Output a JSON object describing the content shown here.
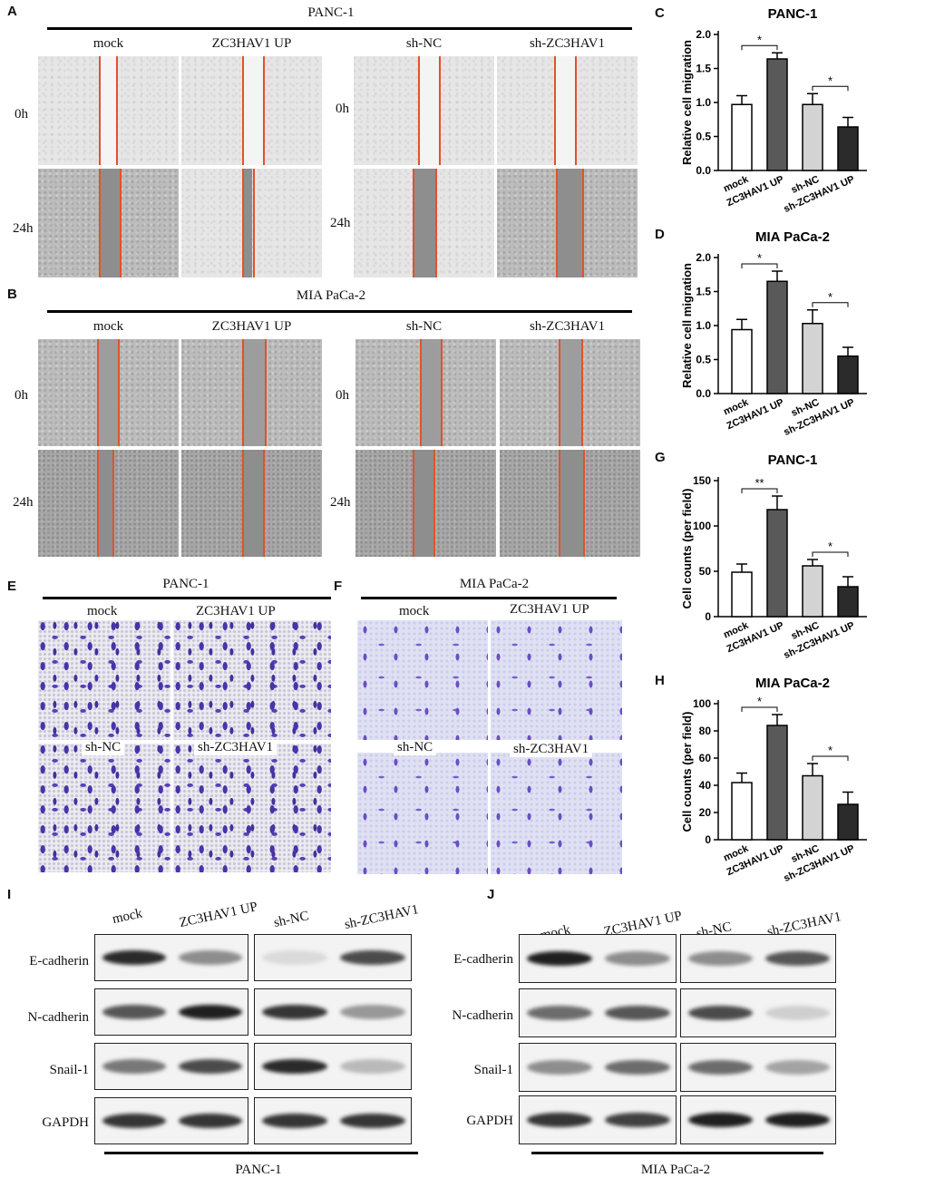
{
  "panel_labels": {
    "A": "A",
    "B": "B",
    "C": "C",
    "D": "D",
    "E": "E",
    "F": "F",
    "G": "G",
    "H": "H",
    "I": "I",
    "J": "J"
  },
  "panelA": {
    "title": "PANC-1",
    "groups": [
      "mock",
      "ZC3HAV1 UP",
      "sh-NC",
      "sh-ZC3HAV1"
    ],
    "times": [
      "0h",
      "24h"
    ]
  },
  "panelB": {
    "title": "MIA PaCa-2",
    "groups": [
      "mock",
      "ZC3HAV1 UP",
      "sh-NC",
      "sh-ZC3HAV1"
    ],
    "times": [
      "0h",
      "24h"
    ]
  },
  "panelE": {
    "title": "PANC-1",
    "labels": [
      "mock",
      "ZC3HAV1 UP",
      "sh-NC",
      "sh-ZC3HAV1"
    ]
  },
  "panelF": {
    "title": "MIA PaCa-2",
    "labels": [
      "mock",
      "ZC3HAV1 UP",
      "sh-NC",
      "sh-ZC3HAV1"
    ]
  },
  "panelI": {
    "groups": [
      "mock",
      "ZC3HAV1 UP",
      "sh-NC",
      "sh-ZC3HAV1"
    ],
    "rows": [
      "E-cadherin",
      "N-cadherin",
      "Snail-1",
      "GAPDH"
    ],
    "footer": "PANC-1"
  },
  "panelJ": {
    "groups": [
      "mock",
      "ZC3HAV1 UP",
      "sh-NC",
      "sh-ZC3HAV1"
    ],
    "rows": [
      "E-cadherin",
      "N-cadherin",
      "Snail-1",
      "GAPDH"
    ],
    "footer": "MIA PaCa-2"
  },
  "colors": {
    "bar_fills": [
      "#ffffff",
      "#595959",
      "#d3d3d3",
      "#2b2b2b"
    ],
    "scratch_line": "#e0532a",
    "crystal_violet": "#4a33a8"
  },
  "chart_data": [
    {
      "id": "C",
      "type": "bar",
      "title": "PANC-1",
      "ylabel": "Relative cell migration",
      "categories": [
        "mock",
        "ZC3HAV1 UP",
        "sh-NC",
        "sh-ZC3HAV1 UP"
      ],
      "values": [
        0.97,
        1.64,
        0.97,
        0.64
      ],
      "errors": [
        0.13,
        0.09,
        0.16,
        0.14
      ],
      "ylim": [
        0,
        2.0
      ],
      "yticks": [
        "0.0",
        "0.5",
        "1.0",
        "1.5",
        "2.0"
      ],
      "significance": [
        {
          "pair": [
            0,
            1
          ],
          "label": "*"
        },
        {
          "pair": [
            2,
            3
          ],
          "label": "*"
        }
      ]
    },
    {
      "id": "D",
      "type": "bar",
      "title": "MIA PaCa-2",
      "ylabel": "Relative cell migration",
      "categories": [
        "mock",
        "ZC3HAV1 UP",
        "sh-NC",
        "sh-ZC3HAV1 UP"
      ],
      "values": [
        0.94,
        1.65,
        1.03,
        0.55
      ],
      "errors": [
        0.15,
        0.15,
        0.2,
        0.13
      ],
      "ylim": [
        0,
        2.0
      ],
      "yticks": [
        "0.0",
        "0.5",
        "1.0",
        "1.5",
        "2.0"
      ],
      "significance": [
        {
          "pair": [
            0,
            1
          ],
          "label": "*"
        },
        {
          "pair": [
            2,
            3
          ],
          "label": "*"
        }
      ]
    },
    {
      "id": "G",
      "type": "bar",
      "title": "PANC-1",
      "ylabel": "Cell counts (per field)",
      "categories": [
        "mock",
        "ZC3HAV1 UP",
        "sh-NC",
        "sh-ZC3HAV1 UP"
      ],
      "values": [
        49,
        118,
        56,
        33
      ],
      "errors": [
        9,
        15,
        7,
        11
      ],
      "ylim": [
        0,
        150
      ],
      "yticks": [
        "0",
        "50",
        "100",
        "150"
      ],
      "significance": [
        {
          "pair": [
            0,
            1
          ],
          "label": "**"
        },
        {
          "pair": [
            2,
            3
          ],
          "label": "*"
        }
      ]
    },
    {
      "id": "H",
      "type": "bar",
      "title": "MIA PaCa-2",
      "ylabel": "Cell counts (per field)",
      "categories": [
        "mock",
        "ZC3HAV1 UP",
        "sh-NC",
        "sh-ZC3HAV1 UP"
      ],
      "values": [
        42,
        84,
        47,
        26
      ],
      "errors": [
        7,
        8,
        9,
        9
      ],
      "ylim": [
        0,
        100
      ],
      "yticks": [
        "0",
        "20",
        "40",
        "60",
        "80",
        "100"
      ],
      "significance": [
        {
          "pair": [
            0,
            1
          ],
          "label": "*"
        },
        {
          "pair": [
            2,
            3
          ],
          "label": "*"
        }
      ]
    }
  ]
}
